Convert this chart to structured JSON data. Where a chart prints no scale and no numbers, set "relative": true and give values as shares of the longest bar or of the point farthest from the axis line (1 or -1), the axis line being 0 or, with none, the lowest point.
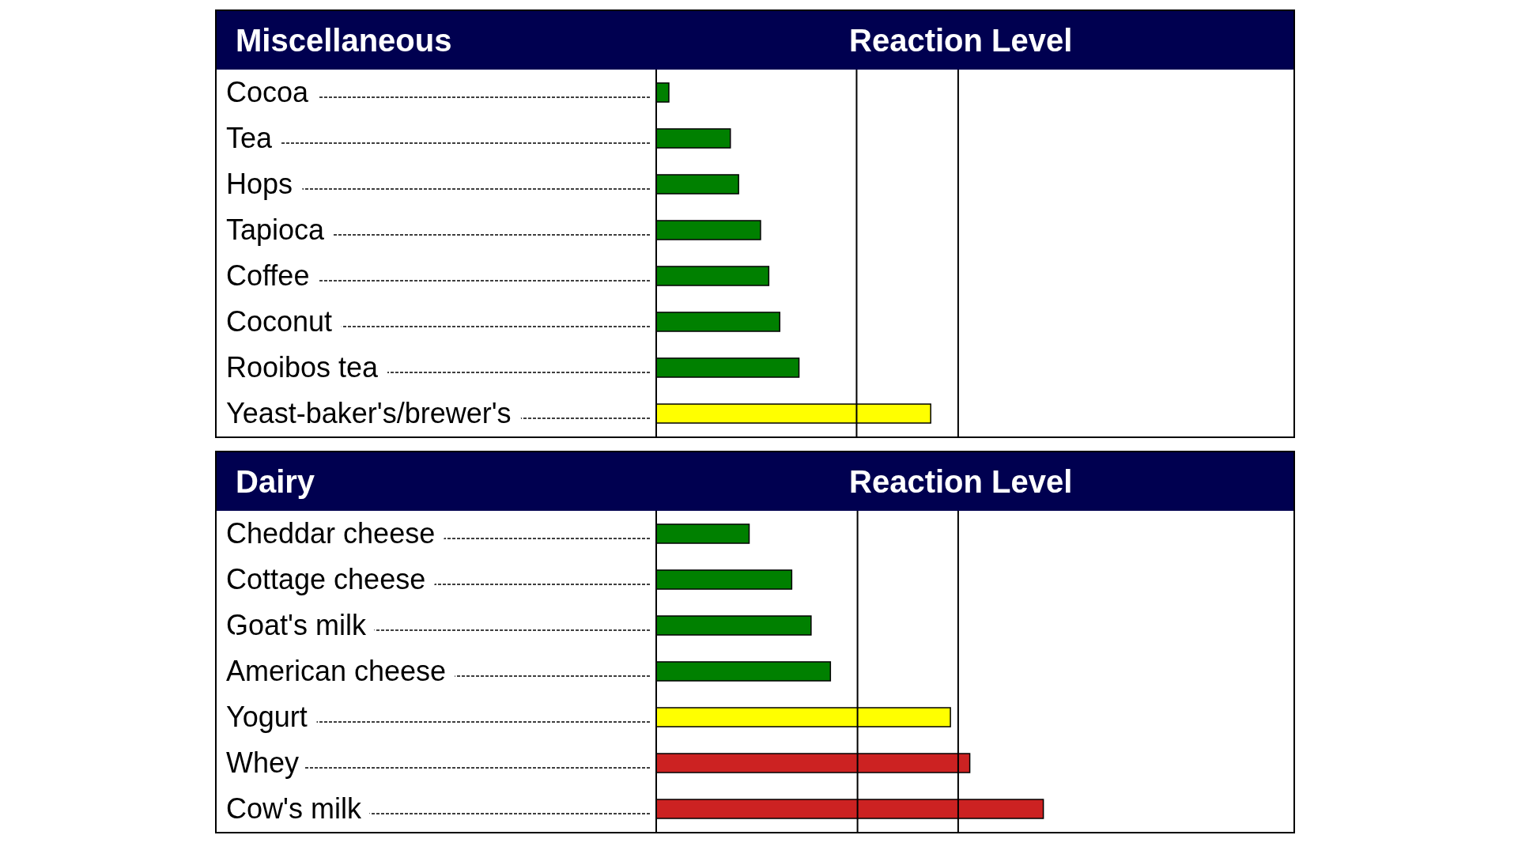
{
  "chart_data": [
    {
      "type": "bar",
      "orientation": "horizontal",
      "relative": true,
      "title": "Miscellaneous",
      "xlabel": "Reaction Level",
      "categories": [
        "Cocoa",
        "Tea",
        "Hops",
        "Tapioca",
        "Coffee",
        "Coconut",
        "Rooibos tea",
        "Yeast-baker's/brewer's"
      ],
      "values": [
        0.046,
        0.27,
        0.3,
        0.38,
        0.41,
        0.45,
        0.52,
        1
      ],
      "colors": [
        "#008000",
        "#008000",
        "#008000",
        "#008000",
        "#008000",
        "#008000",
        "#008000",
        "#ffff00"
      ],
      "ref_lines": [
        {
          "axis": "x",
          "value": 0.73,
          "color": "#000000"
        },
        {
          "axis": "x",
          "value": 1.1,
          "color": "#000000"
        }
      ]
    },
    {
      "type": "bar",
      "orientation": "horizontal",
      "relative": true,
      "title": "Dairy",
      "xlabel": "Reaction Level",
      "categories": [
        "Cheddar cheese",
        "Cottage cheese",
        "Goat's milk",
        "American cheese",
        "Yogurt",
        "Whey",
        "Cow's milk"
      ],
      "values": [
        0.24,
        0.35,
        0.4,
        0.45,
        0.76,
        0.81,
        1
      ],
      "colors": [
        "#008000",
        "#008000",
        "#008000",
        "#008000",
        "#ffff00",
        "#cc2222",
        "#cc2222"
      ],
      "ref_lines": [
        {
          "axis": "x",
          "value": 0.52,
          "color": "#000000"
        },
        {
          "axis": "x",
          "value": 0.78,
          "color": "#000000"
        }
      ]
    }
  ]
}
